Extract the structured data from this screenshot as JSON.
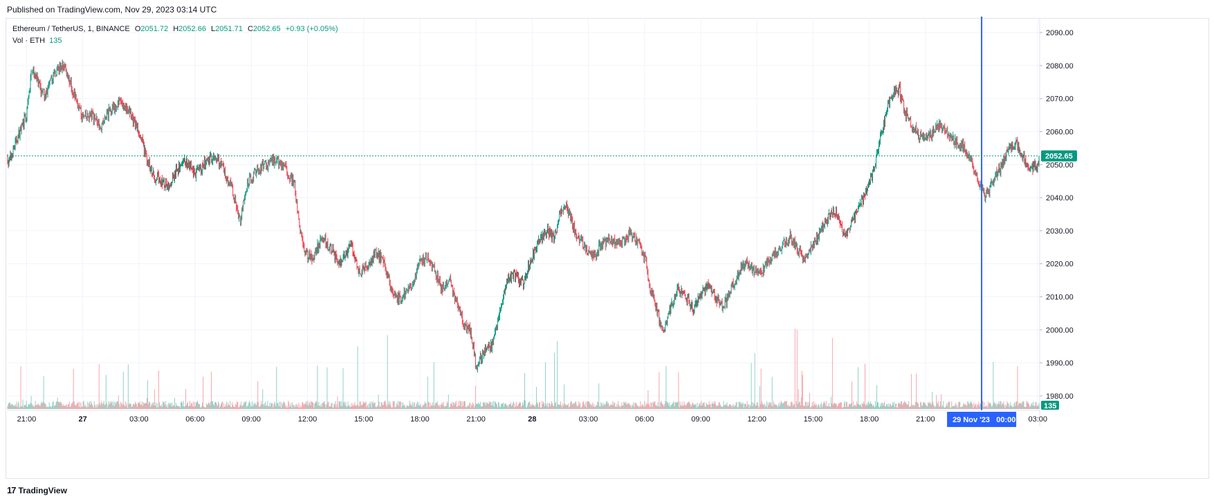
{
  "header": {
    "published": "Published on TradingView.com, Nov 29, 2023 03:14 UTC"
  },
  "legend": {
    "symbol": "Ethereum / TetherUS, 1, BINANCE",
    "open_label": "O",
    "open": "2051.72",
    "high_label": "H",
    "high": "2052.66",
    "low_label": "L",
    "low": "2051.71",
    "close_label": "C",
    "close": "2052.65",
    "change": "+0.93 (+0.05%)",
    "vol_label": "Vol · ETH",
    "vol_value": "135"
  },
  "footer": {
    "brand": "TradingView",
    "brand_logo": "17"
  },
  "colors": {
    "up": "#089981",
    "down": "#f23645",
    "grid": "#f0f3fa",
    "crosshair": "#2962ff",
    "text": "#131722"
  },
  "chart_data": {
    "type": "candlestick",
    "title": "Ethereum / TetherUS, 1, BINANCE",
    "ylim": [
      1976,
      2094
    ],
    "yticks": [
      "2090.00",
      "2080.00",
      "2070.00",
      "2060.00",
      "2050.00",
      "2040.00",
      "2030.00",
      "2020.00",
      "2010.00",
      "2000.00",
      "1990.00",
      "1980.00"
    ],
    "ytick_values": [
      2090,
      2080,
      2070,
      2060,
      2050,
      2040,
      2030,
      2020,
      2010,
      2000,
      1990,
      1980
    ],
    "xticks": [
      "21:00",
      "27",
      "03:00",
      "06:00",
      "09:00",
      "12:00",
      "15:00",
      "18:00",
      "21:00",
      "28",
      "03:00",
      "06:00",
      "09:00",
      "12:00",
      "15:00",
      "18:00",
      "21:00",
      "03:00"
    ],
    "xtick_hours": [
      0,
      3,
      6,
      9,
      12,
      15,
      18,
      21,
      24,
      27,
      30,
      33,
      36,
      39,
      42,
      45,
      48,
      54
    ],
    "hour_span": [
      -1.05,
      54.1
    ],
    "last_price": 2052.65,
    "last_price_label": "2052.65",
    "last_volume_label": "135",
    "crosshair_hour": 51.0,
    "crosshair_label": "29 Nov '23   00:00",
    "price_path": [
      [
        -1.0,
        2050
      ],
      [
        -0.5,
        2058
      ],
      [
        0.0,
        2065
      ],
      [
        0.3,
        2080
      ],
      [
        0.7,
        2073
      ],
      [
        1.0,
        2071
      ],
      [
        1.5,
        2078
      ],
      [
        2.0,
        2080
      ],
      [
        2.5,
        2072
      ],
      [
        3.0,
        2064
      ],
      [
        3.5,
        2065
      ],
      [
        4.0,
        2062
      ],
      [
        4.5,
        2067
      ],
      [
        5.0,
        2069
      ],
      [
        5.5,
        2066
      ],
      [
        6.0,
        2060
      ],
      [
        6.3,
        2054
      ],
      [
        6.7,
        2047
      ],
      [
        7.0,
        2046
      ],
      [
        7.5,
        2043
      ],
      [
        8.0,
        2048
      ],
      [
        8.5,
        2051
      ],
      [
        9.0,
        2047
      ],
      [
        9.5,
        2050
      ],
      [
        10.0,
        2053
      ],
      [
        10.5,
        2049
      ],
      [
        11.0,
        2042
      ],
      [
        11.4,
        2033
      ],
      [
        11.8,
        2044
      ],
      [
        12.2,
        2048
      ],
      [
        12.8,
        2050
      ],
      [
        13.3,
        2051
      ],
      [
        13.8,
        2049
      ],
      [
        14.3,
        2044
      ],
      [
        14.6,
        2030
      ],
      [
        14.9,
        2023
      ],
      [
        15.3,
        2022
      ],
      [
        15.8,
        2028
      ],
      [
        16.3,
        2024
      ],
      [
        16.8,
        2020
      ],
      [
        17.3,
        2026
      ],
      [
        17.8,
        2017
      ],
      [
        18.3,
        2020
      ],
      [
        18.7,
        2024
      ],
      [
        19.2,
        2018
      ],
      [
        19.6,
        2010
      ],
      [
        20.0,
        2009
      ],
      [
        20.5,
        2013
      ],
      [
        21.0,
        2020
      ],
      [
        21.4,
        2022
      ],
      [
        21.8,
        2018
      ],
      [
        22.2,
        2012
      ],
      [
        22.6,
        2015
      ],
      [
        23.0,
        2008
      ],
      [
        23.3,
        2002
      ],
      [
        23.7,
        2000
      ],
      [
        24.0,
        1989
      ],
      [
        24.4,
        1993
      ],
      [
        24.8,
        1995
      ],
      [
        25.2,
        2003
      ],
      [
        25.6,
        2014
      ],
      [
        26.0,
        2017
      ],
      [
        26.5,
        2014
      ],
      [
        27.0,
        2022
      ],
      [
        27.4,
        2027
      ],
      [
        27.8,
        2030
      ],
      [
        28.2,
        2028
      ],
      [
        28.5,
        2036
      ],
      [
        28.8,
        2038
      ],
      [
        29.2,
        2031
      ],
      [
        29.6,
        2027
      ],
      [
        30.0,
        2024
      ],
      [
        30.3,
        2022
      ],
      [
        30.7,
        2026
      ],
      [
        31.2,
        2027
      ],
      [
        31.7,
        2026
      ],
      [
        32.2,
        2029
      ],
      [
        32.6,
        2027
      ],
      [
        33.0,
        2022
      ],
      [
        33.3,
        2013
      ],
      [
        33.7,
        2005
      ],
      [
        34.0,
        1998
      ],
      [
        34.4,
        2007
      ],
      [
        34.8,
        2013
      ],
      [
        35.2,
        2010
      ],
      [
        35.6,
        2006
      ],
      [
        36.0,
        2011
      ],
      [
        36.4,
        2014
      ],
      [
        36.8,
        2010
      ],
      [
        37.2,
        2007
      ],
      [
        37.6,
        2012
      ],
      [
        38.0,
        2017
      ],
      [
        38.4,
        2020
      ],
      [
        38.8,
        2018
      ],
      [
        39.2,
        2017
      ],
      [
        39.6,
        2021
      ],
      [
        40.0,
        2023
      ],
      [
        40.4,
        2026
      ],
      [
        40.8,
        2028
      ],
      [
        41.2,
        2024
      ],
      [
        41.6,
        2021
      ],
      [
        42.0,
        2026
      ],
      [
        42.4,
        2030
      ],
      [
        42.8,
        2034
      ],
      [
        43.2,
        2036
      ],
      [
        43.5,
        2031
      ],
      [
        43.8,
        2028
      ],
      [
        44.1,
        2033
      ],
      [
        44.5,
        2038
      ],
      [
        44.9,
        2042
      ],
      [
        45.3,
        2050
      ],
      [
        45.6,
        2058
      ],
      [
        46.0,
        2068
      ],
      [
        46.3,
        2072
      ],
      [
        46.6,
        2073
      ],
      [
        46.9,
        2066
      ],
      [
        47.2,
        2063
      ],
      [
        47.6,
        2059
      ],
      [
        48.0,
        2058
      ],
      [
        48.4,
        2060
      ],
      [
        48.8,
        2062
      ],
      [
        49.2,
        2059
      ],
      [
        49.6,
        2057
      ],
      [
        50.0,
        2056
      ],
      [
        50.3,
        2053
      ],
      [
        50.6,
        2048
      ],
      [
        51.0,
        2043
      ],
      [
        51.2,
        2040
      ],
      [
        51.6,
        2045
      ],
      [
        52.0,
        2049
      ],
      [
        52.4,
        2054
      ],
      [
        52.8,
        2057
      ],
      [
        53.2,
        2052
      ],
      [
        53.6,
        2049
      ],
      [
        54.0,
        2050
      ],
      [
        54.1,
        2052
      ]
    ]
  }
}
